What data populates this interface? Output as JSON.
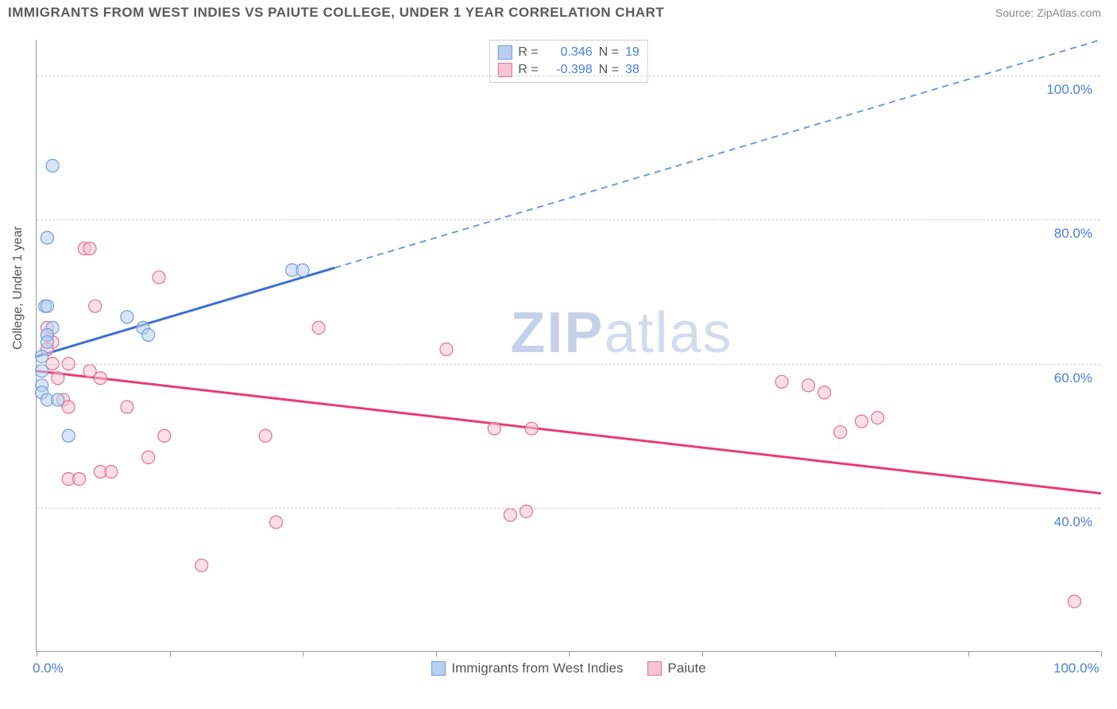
{
  "header": {
    "title": "IMMIGRANTS FROM WEST INDIES VS PAIUTE COLLEGE, UNDER 1 YEAR CORRELATION CHART",
    "source": "Source: ZipAtlas.com"
  },
  "watermark": {
    "bold": "ZIP",
    "light": "atlas"
  },
  "chart": {
    "type": "scatter",
    "ylabel": "College, Under 1 year",
    "xlim": [
      0,
      100
    ],
    "ylim": [
      20,
      105
    ],
    "xtick_positions": [
      0,
      12.5,
      25,
      37.5,
      50,
      62.5,
      75,
      87.5,
      100
    ],
    "xtick_labels": {
      "first": "0.0%",
      "last": "100.0%"
    },
    "ytick_positions": [
      40,
      60,
      80,
      100
    ],
    "ytick_labels": [
      "40.0%",
      "60.0%",
      "80.0%",
      "100.0%"
    ],
    "grid_color": "#d0d0d0",
    "axis_color": "#999999",
    "tick_label_color": "#4a7fd8",
    "background_color": "#ffffff",
    "series": [
      {
        "label": "Immigrants from West Indies",
        "marker_color": "#6f9bdc",
        "marker_fill": "#b9cff0",
        "marker_fill_opacity": 0.55,
        "line_color": "#3d6fd1",
        "dash_color": "#6f9bdc",
        "line_width": 2,
        "marker_radius": 8,
        "R": "0.346",
        "N": "19",
        "trend": {
          "x1": 0,
          "y1": 61,
          "x2": 100,
          "y2": 105,
          "solid_until_x": 28
        },
        "points": [
          {
            "x": 1.5,
            "y": 87.5
          },
          {
            "x": 1.0,
            "y": 77.5
          },
          {
            "x": 0.8,
            "y": 68
          },
          {
            "x": 1.0,
            "y": 68
          },
          {
            "x": 1.5,
            "y": 65
          },
          {
            "x": 1.0,
            "y": 64
          },
          {
            "x": 1.0,
            "y": 63
          },
          {
            "x": 0.5,
            "y": 61
          },
          {
            "x": 0.5,
            "y": 59
          },
          {
            "x": 0.5,
            "y": 57
          },
          {
            "x": 0.5,
            "y": 56
          },
          {
            "x": 1.0,
            "y": 55
          },
          {
            "x": 2.0,
            "y": 55
          },
          {
            "x": 3.0,
            "y": 50
          },
          {
            "x": 8.5,
            "y": 66.5
          },
          {
            "x": 10.0,
            "y": 65
          },
          {
            "x": 10.5,
            "y": 64
          },
          {
            "x": 24.0,
            "y": 73
          },
          {
            "x": 25.0,
            "y": 73
          }
        ]
      },
      {
        "label": "Paiute",
        "marker_color": "#e56f94",
        "marker_fill": "#f6c4d2",
        "marker_fill_opacity": 0.55,
        "line_color": "#e83d73",
        "line_width": 2,
        "marker_radius": 8,
        "R": "-0.398",
        "N": "38",
        "trend": {
          "x1": 0,
          "y1": 59,
          "x2": 100,
          "y2": 42
        },
        "points": [
          {
            "x": 1.0,
            "y": 65
          },
          {
            "x": 1.0,
            "y": 64
          },
          {
            "x": 1.5,
            "y": 63
          },
          {
            "x": 1.0,
            "y": 62
          },
          {
            "x": 1.5,
            "y": 60
          },
          {
            "x": 2.0,
            "y": 58
          },
          {
            "x": 2.5,
            "y": 55
          },
          {
            "x": 3.0,
            "y": 60
          },
          {
            "x": 3.0,
            "y": 54
          },
          {
            "x": 4.5,
            "y": 76
          },
          {
            "x": 5.0,
            "y": 76
          },
          {
            "x": 5.5,
            "y": 68
          },
          {
            "x": 5.0,
            "y": 59
          },
          {
            "x": 6.0,
            "y": 58
          },
          {
            "x": 6.0,
            "y": 45
          },
          {
            "x": 7.0,
            "y": 45
          },
          {
            "x": 8.5,
            "y": 54
          },
          {
            "x": 10.5,
            "y": 47
          },
          {
            "x": 11.5,
            "y": 72
          },
          {
            "x": 12.0,
            "y": 50
          },
          {
            "x": 15.5,
            "y": 32
          },
          {
            "x": 21.5,
            "y": 50
          },
          {
            "x": 22.5,
            "y": 38
          },
          {
            "x": 26.5,
            "y": 65
          },
          {
            "x": 38.5,
            "y": 62
          },
          {
            "x": 43.0,
            "y": 51
          },
          {
            "x": 44.5,
            "y": 39
          },
          {
            "x": 46.0,
            "y": 39.5
          },
          {
            "x": 46.5,
            "y": 51
          },
          {
            "x": 70.0,
            "y": 57.5
          },
          {
            "x": 72.5,
            "y": 57
          },
          {
            "x": 74.0,
            "y": 56
          },
          {
            "x": 75.5,
            "y": 50.5
          },
          {
            "x": 77.5,
            "y": 52
          },
          {
            "x": 79.0,
            "y": 52.5
          },
          {
            "x": 97.5,
            "y": 27
          },
          {
            "x": 3.0,
            "y": 44
          },
          {
            "x": 4.0,
            "y": 44
          }
        ]
      }
    ],
    "legend_labels": {
      "R": "R =",
      "N": "N ="
    }
  }
}
